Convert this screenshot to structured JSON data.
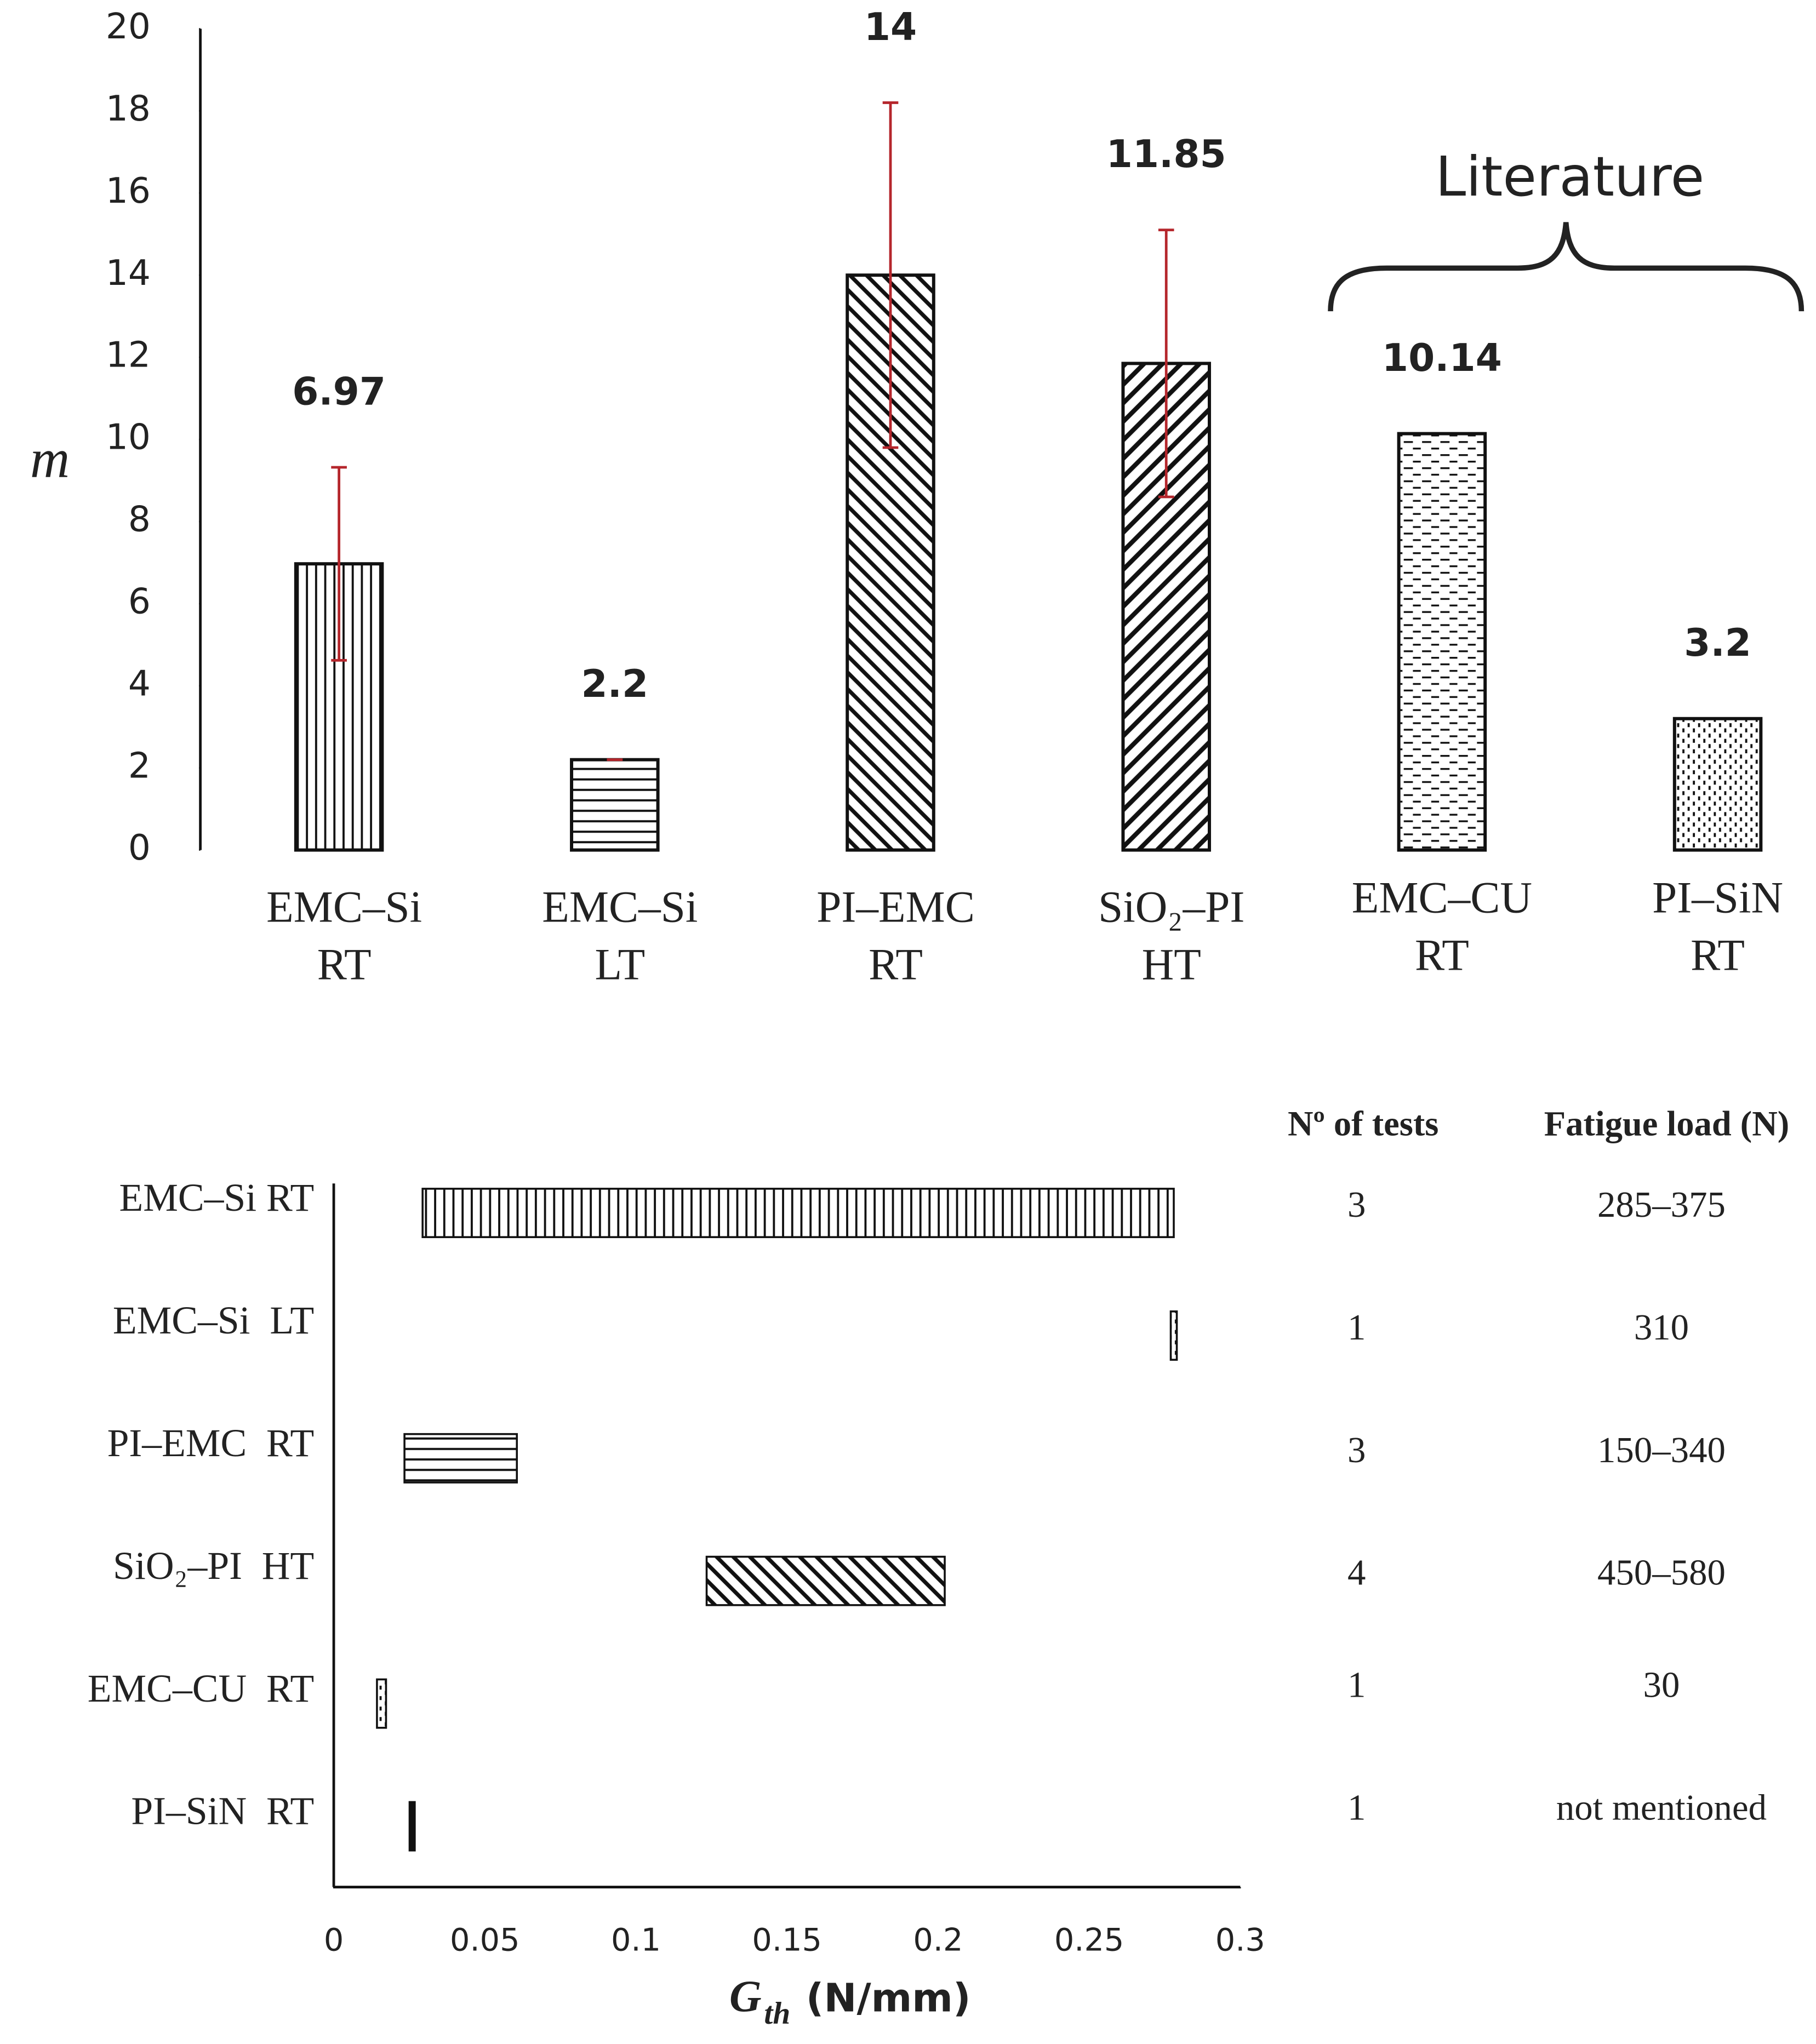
{
  "chart_data": [
    {
      "type": "bar",
      "categories": [
        [
          "EMC–Si",
          "RT"
        ],
        [
          "EMC–Si",
          "LT"
        ],
        [
          "PI–EMC",
          "RT"
        ],
        [
          "SiO₂–PI",
          "HT"
        ],
        [
          "EMC–CU",
          "RT"
        ],
        [
          "PI–SiN",
          "RT"
        ]
      ],
      "values": [
        6.97,
        2.2,
        14,
        11.85,
        10.14,
        3.2
      ],
      "errors": [
        2.35,
        0,
        4.2,
        3.25,
        null,
        null
      ],
      "error_color": "#b5262c",
      "patterns": [
        "vertical",
        "horizontal",
        "diag-back",
        "diag-fwd",
        "dashes",
        "dots"
      ],
      "ylabel": "m",
      "ylim": [
        0,
        20
      ],
      "yticks": [
        0,
        2,
        4,
        6,
        8,
        10,
        12,
        14,
        16,
        18,
        20
      ],
      "annotation": "Literature"
    },
    {
      "type": "range-bar",
      "categories": [
        "EMC–Si RT",
        "EMC–Si  LT",
        "PI–EMC  RT",
        "SiO₂–PI  HT",
        "EMC–CU  RT",
        "PI–SiN  RT"
      ],
      "starts": [
        0.0294,
        0.277,
        0.0234,
        0.1234,
        0.0143,
        0.0251
      ],
      "ends": [
        0.278,
        0.279,
        0.0606,
        0.2022,
        0.0173,
        0.0268
      ],
      "patterns": [
        "vertical",
        "dots",
        "horizontal",
        "diag-back",
        "dots",
        "solid"
      ],
      "xlabel": {
        "symbol": "G",
        "subscript": "th",
        "unit": "(N/mm)"
      },
      "xlim": [
        0,
        0.3
      ],
      "xticks": [
        0,
        0.05,
        0.1,
        0.15,
        0.2,
        0.25,
        0.3
      ],
      "table": {
        "columns": [
          "Nº of tests",
          "Fatigue load (N)"
        ],
        "rows": [
          [
            3,
            "285–375"
          ],
          [
            1,
            "310"
          ],
          [
            3,
            "150–340"
          ],
          [
            4,
            "450–580"
          ],
          [
            1,
            "30"
          ],
          [
            1,
            "not mentioned"
          ]
        ]
      }
    }
  ]
}
